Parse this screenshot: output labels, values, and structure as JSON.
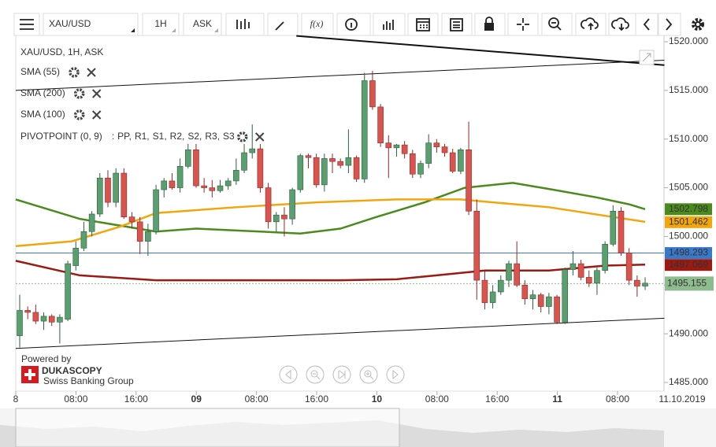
{
  "toolbar": {
    "symbol": "XAU/USD",
    "period": "1H",
    "side": "ASK",
    "fx": "f(x)"
  },
  "chart_data": {
    "type": "candlestick",
    "title": "XAU/USD, 1H, ASK",
    "ylim": [
      1485.65,
      1521.2
    ],
    "yticks": [
      {
        "value": 1520,
        "label": "1520.000"
      },
      {
        "value": 1515,
        "label": "1515.000"
      },
      {
        "value": 1510,
        "label": "1510.000"
      },
      {
        "value": 1505,
        "label": "1505.000"
      },
      {
        "value": 1500,
        "label": "1500.000"
      },
      {
        "value": 1495,
        "label": "1495.000"
      },
      {
        "value": 1490,
        "label": "1490.000"
      },
      {
        "value": 1485,
        "label": "1485.000"
      }
    ],
    "xticks": [
      "8",
      "08:00",
      "16:00",
      "09",
      "08:00",
      "16:00",
      "10",
      "08:00",
      "16:00",
      "11",
      "08:00"
    ],
    "bold_xticks": [
      "09",
      "10",
      "11"
    ],
    "date": "11.10.2019",
    "up_color": "#5b9e6f",
    "down_color": "#d9534f",
    "open": [
      1489.8,
      1492.4,
      1492.2,
      1491.3,
      1491.8,
      1491.2,
      1491.5,
      1497,
      1498.8,
      1500.5,
      1502.3,
      1506,
      1503.5,
      1506.5,
      1502,
      1501.5,
      1499.5,
      1500.5,
      1504.8,
      1505.7,
      1505,
      1507.2,
      1508.9,
      1505.2,
      1505,
      1504.7,
      1505.2,
      1505.7,
      1506.8,
      1508.6,
      1509,
      1505,
      1501.5,
      1502.2,
      1501.8,
      1504.8,
      1508.3,
      1508.1,
      1505.3,
      1508,
      1507.7,
      1507.3,
      1508.1,
      1505.9,
      1516,
      1513.3,
      1509.6,
      1509.1,
      1509.4,
      1508.5,
      1506.4,
      1507.5,
      1509.6,
      1509.2,
      1508.6,
      1506.7,
      1508.9,
      1502.6,
      1495.5,
      1493.2,
      1494.3,
      1495.5,
      1497.2,
      1495,
      1493.6,
      1494,
      1492.8,
      1493.8,
      1491.2,
      1496.6,
      1497.2,
      1495.8,
      1495.2,
      1496.5,
      1499.2,
      1502.6,
      1498.3,
      1495.5,
      1494.9
    ],
    "high": [
      1494,
      1492.8,
      1493,
      1492.2,
      1492,
      1492,
      1497.5,
      1499.5,
      1501.5,
      1502.6,
      1506.5,
      1506.8,
      1507,
      1507,
      1502.5,
      1502,
      1501.3,
      1505.3,
      1506,
      1506.5,
      1508,
      1509.5,
      1509.5,
      1506,
      1505.8,
      1505.8,
      1506,
      1508,
      1509.5,
      1511.5,
      1509.5,
      1505.5,
      1502.5,
      1503,
      1505,
      1508.5,
      1508.5,
      1508.5,
      1508.5,
      1508.5,
      1508,
      1511,
      1508.3,
      1516.8,
      1517,
      1513.6,
      1510.4,
      1509.5,
      1509.8,
      1508.9,
      1507.8,
      1510.5,
      1510,
      1509.5,
      1509,
      1509.1,
      1511.8,
      1503.8,
      1496.5,
      1495,
      1496,
      1497.5,
      1499.5,
      1495.5,
      1494.5,
      1494.2,
      1494.2,
      1494,
      1496.8,
      1498.5,
      1497.6,
      1496.5,
      1496.8,
      1499.5,
      1503.2,
      1503,
      1498.8,
      1496,
      1495.8
    ],
    "low": [
      1488.6,
      1491.5,
      1491,
      1490.4,
      1490.8,
      1489,
      1491.3,
      1496.5,
      1498.5,
      1500,
      1502,
      1503,
      1503,
      1501.8,
      1500.8,
      1498.2,
      1498,
      1500.2,
      1504,
      1504.8,
      1504.5,
      1507,
      1505,
      1504.5,
      1504,
      1504.5,
      1504.8,
      1505.3,
      1506.5,
      1508,
      1504.5,
      1500.8,
      1500.5,
      1500,
      1501.2,
      1504.5,
      1507,
      1505,
      1504.6,
      1506.5,
      1507,
      1506.5,
      1505.6,
      1505.5,
      1513,
      1509.2,
      1506,
      1508.2,
      1508,
      1506,
      1506,
      1507,
      1508.6,
      1508.2,
      1506.5,
      1506.4,
      1502.2,
      1493.5,
      1492.5,
      1492.6,
      1494,
      1494.8,
      1494.8,
      1493,
      1492.5,
      1492.2,
      1492,
      1491,
      1491,
      1496,
      1495.5,
      1494.8,
      1494,
      1496.2,
      1499,
      1498,
      1495,
      1493.8,
      1494.5
    ],
    "close": [
      1492.4,
      1492.2,
      1491.3,
      1491.8,
      1491.2,
      1491.7,
      1497.2,
      1498.8,
      1500.5,
      1502.3,
      1506,
      1503.5,
      1506.5,
      1502,
      1501.5,
      1499.5,
      1500.5,
      1504.8,
      1505.7,
      1505,
      1507.2,
      1508.9,
      1505.2,
      1505,
      1504.7,
      1505.2,
      1505.7,
      1506.8,
      1508.6,
      1509,
      1505,
      1501.5,
      1502.2,
      1501.8,
      1504.8,
      1508.3,
      1508.1,
      1505.3,
      1508,
      1507.7,
      1507.3,
      1508.1,
      1505.9,
      1516,
      1513.3,
      1509.6,
      1509.1,
      1509.4,
      1508.5,
      1506.4,
      1507.5,
      1509.6,
      1509.2,
      1508.6,
      1506.7,
      1508.9,
      1502.6,
      1495.5,
      1493.2,
      1494.3,
      1495.5,
      1497.2,
      1495,
      1493.6,
      1494,
      1492.8,
      1493.8,
      1491.2,
      1496.6,
      1497.2,
      1495.8,
      1495.2,
      1496.5,
      1499.2,
      1502.6,
      1498.3,
      1495.5,
      1494.9,
      1495.2
    ],
    "indicators": [
      {
        "name": "SMA (55)",
        "color": "#4b8b1d",
        "x": [
          -0.5,
          7.5,
          17,
          22,
          30,
          35,
          40,
          44.5,
          50.5,
          55.5,
          61.5,
          66.5,
          72,
          76,
          78
        ],
        "values": [
          1503.8,
          1501.8,
          1500.5,
          1500.8,
          1500.5,
          1500.3,
          1500.8,
          1502,
          1503.5,
          1505,
          1505.5,
          1504.8,
          1504,
          1503.3,
          1502.8
        ],
        "tag": 1502.798
      },
      {
        "name": "SMA (200)",
        "color": "#9b1a12",
        "x": [
          -0.5,
          7.5,
          17,
          30,
          40,
          47,
          52,
          58,
          66,
          73,
          78
        ],
        "values": [
          1497.5,
          1496,
          1495.5,
          1495.5,
          1495.5,
          1495.6,
          1496,
          1496.5,
          1496.5,
          1497,
          1497.1
        ],
        "tag": 1497.069
      },
      {
        "name": "SMA (100)",
        "color": "#f2a60d",
        "x": [
          -0.5,
          6.5,
          12.5,
          17,
          27,
          37,
          47,
          55,
          59,
          66,
          74,
          78
        ],
        "values": [
          1499,
          1499.5,
          1501,
          1502.4,
          1503,
          1503.5,
          1503.8,
          1503.8,
          1503.5,
          1503,
          1502,
          1501.5
        ],
        "tag": 1501.462
      }
    ],
    "pivot": {
      "name": "PIVOTPOINT (0, 9)",
      "sep": ":",
      "levels": [
        {
          "name": "PP,",
          "color": "#2a7fd4"
        },
        {
          "name": "R1,",
          "color": "#3b8a1a"
        },
        {
          "name": "S1,",
          "color": "#b71c1c"
        },
        {
          "name": "R2,",
          "color": "#d32f2f"
        },
        {
          "name": "S2,",
          "color": "#f29b0d"
        },
        {
          "name": "R3,",
          "color": "#e08e0b"
        },
        {
          "name": "S3",
          "color": "#f5c400"
        }
      ]
    },
    "trendlines": [
      {
        "x": [
          -0.5,
          80.4
        ],
        "values": [
          1488.5,
          1491.6
        ],
        "width": 1
      },
      {
        "x": [
          -0.5,
          80.4
        ],
        "values": [
          1515,
          1518.1
        ],
        "width": 1
      },
      {
        "x": [
          34.5,
          80.4
        ],
        "values": [
          1520.6,
          1517.6
        ],
        "width": 2
      }
    ],
    "hline": {
      "value": 1498.293,
      "color": "#3a78c9"
    },
    "last": {
      "value": 1495.155,
      "color": "#8fbc8f"
    },
    "brand": {
      "powered": "Powered by",
      "name": "DUKASCOPY",
      "tagline": "Swiss Banking Group"
    }
  }
}
